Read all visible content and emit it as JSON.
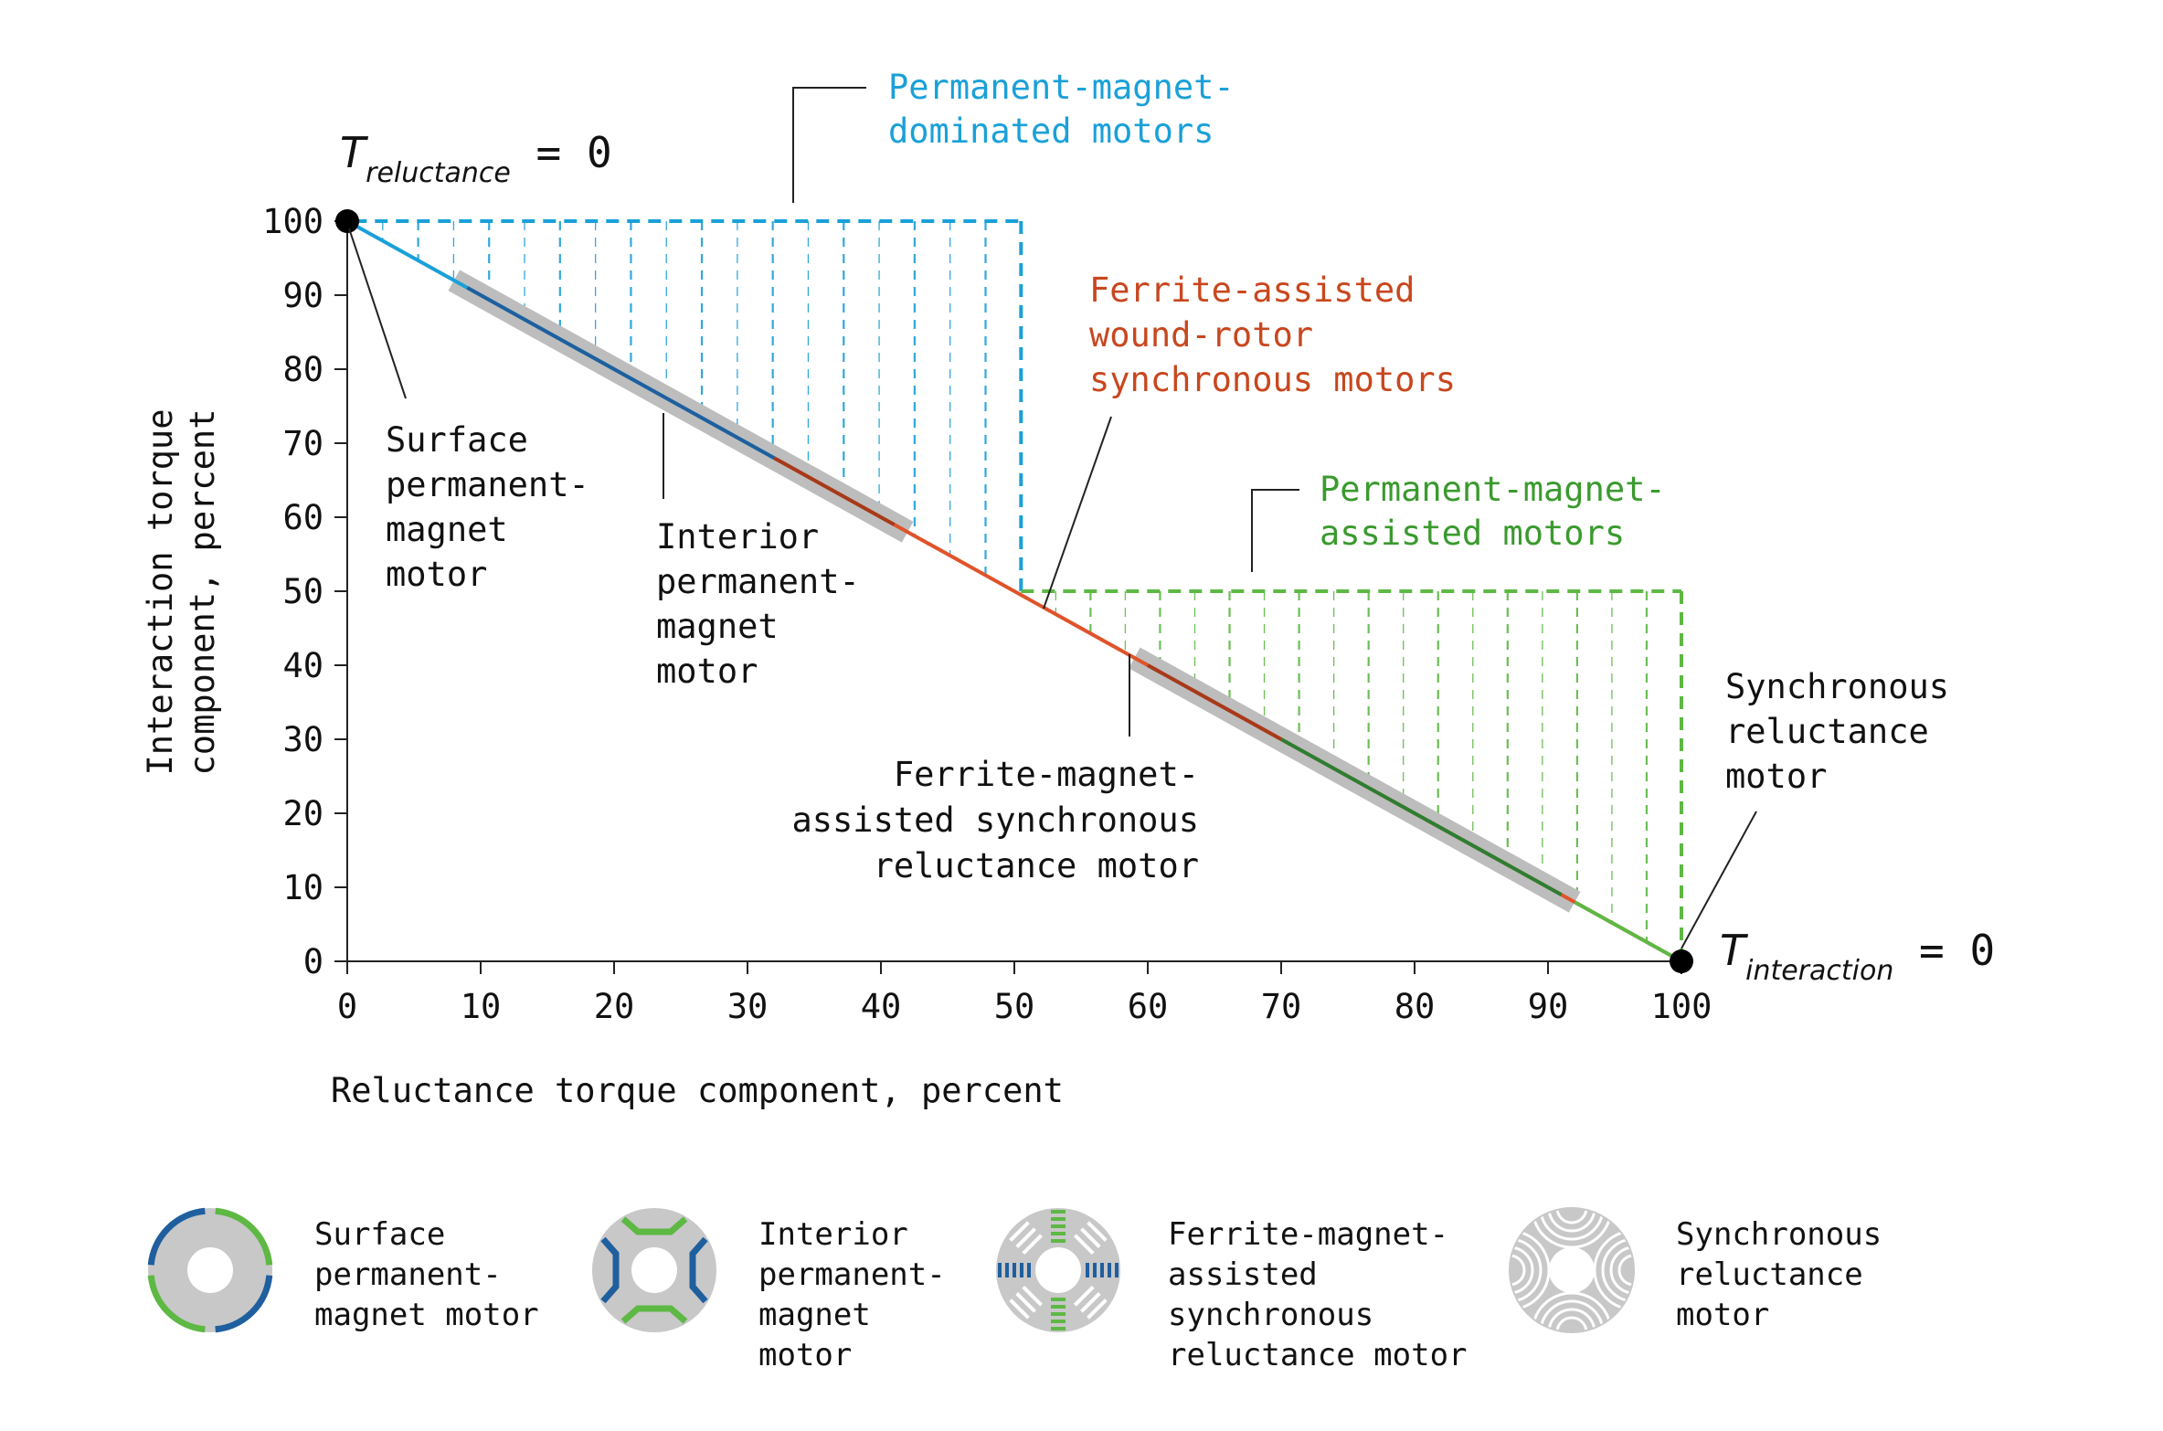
{
  "chart_data": {
    "type": "line",
    "xlabel": "Reluctance torque component, percent",
    "ylabel_lines": [
      "Interaction torque",
      "component, percent"
    ],
    "xlim": [
      0,
      100
    ],
    "ylim": [
      0,
      100
    ],
    "x_ticks": [
      "0",
      "10",
      "20",
      "30",
      "40",
      "50",
      "60",
      "70",
      "80",
      "90",
      "100"
    ],
    "y_ticks": [
      "0",
      "10",
      "20",
      "30",
      "40",
      "50",
      "60",
      "70",
      "80",
      "90",
      "100"
    ],
    "line": {
      "x": [
        0,
        100
      ],
      "y": [
        100,
        0
      ],
      "segments": [
        {
          "x": [
            0,
            32
          ],
          "color": "#1aa0d8"
        },
        {
          "x": [
            32,
            100
          ],
          "color": "#e0532a"
        }
      ]
    },
    "shaded_regions": [
      {
        "name": "Permanent-magnet-dominated motors",
        "x": [
          0,
          50.5
        ],
        "y_top": 100,
        "color": "#1aa0d8"
      },
      {
        "name": "Permanent-magnet-assisted motors",
        "x": [
          50.5,
          100
        ],
        "y_top": 50,
        "color": "#5db844"
      }
    ],
    "ranges": [
      {
        "name": "Interior permanent-magnet motor",
        "x": [
          8,
          42
        ]
      },
      {
        "name": "Ferrite-magnet-assisted synchronous reluctance motor",
        "x": [
          59,
          92
        ]
      }
    ],
    "endpoints": [
      {
        "x": 0,
        "y": 100,
        "label_main": "T",
        "label_sub": "reluctance",
        "label_tail": " = 0"
      },
      {
        "x": 100,
        "y": 0,
        "label_main": "T",
        "label_sub": "interaction",
        "label_tail": " = 0"
      }
    ],
    "annotations": {
      "pm_dominated": [
        "Permanent-magnet-",
        "dominated motors"
      ],
      "ferrite_wound": [
        "Ferrite-assisted",
        "wound-rotor",
        "synchronous motors"
      ],
      "pm_assisted": [
        "Permanent-magnet-",
        "assisted motors"
      ],
      "surface_pm": [
        "Surface",
        "permanent-",
        "magnet",
        "motor"
      ],
      "interior_pm": [
        "Interior",
        "permanent-",
        "magnet",
        "motor"
      ],
      "ferrite_syn": [
        "Ferrite-magnet-",
        "assisted synchronous",
        "reluctance motor"
      ],
      "syn_rel": [
        "Synchronous",
        "reluctance",
        "motor"
      ]
    },
    "colors": {
      "blue": "#1aa0d8",
      "dark_blue": "#1f5f9e",
      "red": "#e0532a",
      "dark_red": "#a63a1a",
      "green": "#5db844",
      "dark_green": "#2e7d32",
      "gray_band": "#bdbdbd"
    }
  },
  "legend": [
    {
      "icon": "surface-pm-rotor-icon",
      "lines": [
        "Surface",
        "permanent-",
        "magnet motor"
      ]
    },
    {
      "icon": "interior-pm-rotor-icon",
      "lines": [
        "Interior",
        "permanent-",
        "magnet",
        "motor"
      ]
    },
    {
      "icon": "ferrite-rotor-icon",
      "lines": [
        "Ferrite-magnet-",
        "assisted",
        "synchronous",
        "reluctance motor"
      ]
    },
    {
      "icon": "synrel-rotor-icon",
      "lines": [
        "Synchronous",
        "reluctance",
        "motor"
      ]
    }
  ]
}
